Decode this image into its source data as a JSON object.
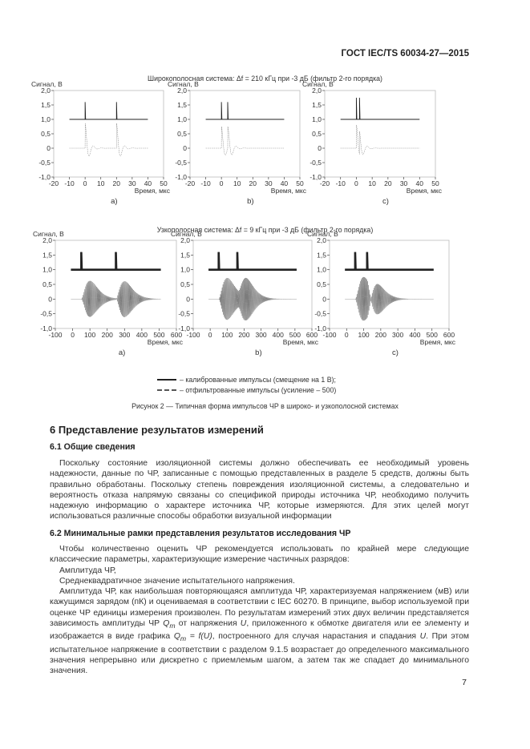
{
  "header": {
    "standard": "ГОСТ IEC/TS 60034-27—2015"
  },
  "figure": {
    "wideband_title": "Широкополосная система: Δf = 210 кГц при -3 дБ (фильтр 2-го порядка)",
    "narrowband_title": "Узкополосная система: Δf = 9 кГц при -3 дБ (фильтр 2-го порядка)",
    "legend": [
      {
        "style": "solid",
        "label": "– калиброванные импульсы (смещение на 1 В);"
      },
      {
        "style": "dashed",
        "label": "– отфильтрованные импульсы (усиление – 500)"
      }
    ],
    "caption": "Рисунок 2 — Типичная форма импульсов ЧР в широко- и узкополосной системах"
  },
  "chart_data": [
    {
      "type": "line",
      "panel": "a)",
      "group": "wideband",
      "ylabel": "Сигнал, В",
      "xlabel": "Время, мкс",
      "xlim": [
        -20,
        50
      ],
      "ylim": [
        -1.0,
        2.0
      ],
      "xticks": [
        "-20",
        "-10",
        "0",
        "10",
        "20",
        "30",
        "40",
        "50"
      ],
      "yticks": [
        "-1,0",
        "-0,5",
        "0",
        "0,5",
        "1,0",
        "1,5",
        "2,0"
      ],
      "x_range": [
        -10,
        40
      ],
      "calibrated": {
        "offset": 1.0,
        "pulse_times": [
          0,
          20
        ],
        "peak": 1.6
      },
      "filtered": {
        "pulse_times": [
          0,
          20
        ],
        "peak": 0.75,
        "trough": -0.6
      }
    },
    {
      "type": "line",
      "panel": "b)",
      "group": "wideband",
      "ylabel": "Сигнал, В",
      "xlabel": "Время, мкс",
      "xlim": [
        -20,
        50
      ],
      "ylim": [
        -1.0,
        2.0
      ],
      "xticks": [
        "-20",
        "-10",
        "0",
        "10",
        "20",
        "30",
        "40",
        "50"
      ],
      "yticks": [
        "-1,0",
        "-0,5",
        "0",
        "0,5",
        "1,0",
        "1,5",
        "2,0"
      ],
      "x_range": [
        -10,
        40
      ],
      "calibrated": {
        "offset": 1.0,
        "pulse_times": [
          0,
          4
        ],
        "peak": 1.6
      },
      "filtered": {
        "pulse_times": [
          0,
          4
        ],
        "peak": 0.65,
        "trough": -0.5
      }
    },
    {
      "type": "line",
      "panel": "c)",
      "group": "wideband",
      "ylabel": "Сигнал, В",
      "xlabel": "Время, мкс",
      "xlim": [
        -20,
        50
      ],
      "ylim": [
        -1.0,
        2.0
      ],
      "xticks": [
        "-20",
        "-10",
        "0",
        "10",
        "20",
        "30",
        "40",
        "50"
      ],
      "yticks": [
        "-1,0",
        "-0,5",
        "0",
        "0,5",
        "1,0",
        "1,5",
        "2,0"
      ],
      "x_range": [
        -10,
        40
      ],
      "calibrated": {
        "offset": 1.0,
        "pulse_times": [
          0,
          2
        ],
        "peak": 1.75
      },
      "filtered": {
        "pulse_times": [
          0,
          2
        ],
        "peak": 0.7,
        "trough": -0.75
      }
    },
    {
      "type": "line",
      "panel": "a)",
      "group": "narrowband",
      "ylabel": "Сигнал, В",
      "xlabel": "Время, мкс",
      "xlim": [
        -100,
        600
      ],
      "ylim": [
        -1.0,
        2.0
      ],
      "xticks": [
        "-100",
        "0",
        "100",
        "200",
        "300",
        "400",
        "500",
        "600"
      ],
      "yticks": [
        "-1,0",
        "-0,5",
        "0",
        "0,5",
        "1,0",
        "1,5",
        "2,0"
      ],
      "x_range": [
        -10,
        510
      ],
      "calibrated": {
        "offset": 1.0,
        "pulse_times": [
          50,
          250
        ],
        "peak": 1.6
      },
      "filtered": {
        "pulse_times": [
          50,
          250
        ],
        "peak": 0.62,
        "trough": -0.62
      }
    },
    {
      "type": "line",
      "panel": "b)",
      "group": "narrowband",
      "ylabel": "Сигнал, В",
      "xlabel": "Время, мкс",
      "xlim": [
        -100,
        600
      ],
      "ylim": [
        -1.0,
        2.0
      ],
      "xticks": [
        "-100",
        "0",
        "100",
        "200",
        "300",
        "400",
        "500",
        "600"
      ],
      "yticks": [
        "-1,0",
        "-0,5",
        "0",
        "0,5",
        "1,0",
        "1,5",
        "2,0"
      ],
      "x_range": [
        -10,
        510
      ],
      "calibrated": {
        "offset": 1.0,
        "pulse_times": [
          50,
          160
        ],
        "peak": 1.6
      },
      "filtered": {
        "pulse_times": [
          50,
          160
        ],
        "peak": 0.72,
        "trough": -0.7
      }
    },
    {
      "type": "line",
      "panel": "c)",
      "group": "narrowband",
      "ylabel": "Сигнал, В",
      "xlabel": "Время, мкс",
      "xlim": [
        -100,
        600
      ],
      "ylim": [
        -1.0,
        2.0
      ],
      "xticks": [
        "-100",
        "0",
        "100",
        "200",
        "300",
        "400",
        "500",
        "600"
      ],
      "yticks": [
        "-1,0",
        "-0,5",
        "0",
        "0,5",
        "1,0",
        "1,5",
        "2,0"
      ],
      "x_range": [
        -10,
        510
      ],
      "calibrated": {
        "offset": 1.0,
        "pulse_times": [
          50,
          120
        ],
        "peak": 1.6
      },
      "filtered": {
        "pulse_times": [
          50,
          120
        ],
        "peak": 0.75,
        "trough": -0.75
      }
    }
  ],
  "section6": {
    "title": "6  Представление результатов измерений",
    "s61_title": "6.1  Общие сведения",
    "s61_text": "Поскольку состояние изоляционной системы должно обеспечивать ее необходимый уровень надежности, данные по ЧР, записанные с помощью представленных в разделе 5 средств, должны быть правильно обработаны. Поскольку степень повреждения изоляционной системы, а следовательно и вероятность отказа напрямую связаны со спецификой природы источника ЧР, необходимо получить надежную информацию о характере источника ЧР, которые измеряются. Для этих целей могут использоваться различные способы обработки визуальной информации",
    "s62_title": "6.2  Минимальные рамки представления результатов исследования ЧР",
    "s62_p1": "Чтобы количественно оценить ЧР рекомендуется использовать по крайней мере следующие классические параметры, характеризующие измерение частичных разрядов:",
    "s62_item1": "Амплитуда ЧР,",
    "s62_item2": "Среднеквадратичное значение испытательного напряжения.",
    "s62_p2_a": "Амплитуда ЧР, как наибольшая повторяющаяся амплитуда ЧР, характеризуемая напряжением (мВ) или кажущимся зарядом (пК) и оцениваемая в соответствии с IEC 60270. В принципе, выбор используемой при оценке ЧР единицы измерения произволен. По результатам измерений этих двух величин представляется зависимость амплитуды ЧР ",
    "s62_p2_b": " от напряжения ",
    "s62_p2_c": ", приложенного к обмотке двигателя или ее элементу и изображается в виде графика ",
    "s62_p2_d": ", построенного для случая нарастания и спадания ",
    "s62_p2_e": ". При этом испытательное напряжение в соответствии с разделом 9.1.5 возрастает до определенного максимального значения непрерывно или дискретно с приемлемым шагом, а затем так же спадает до минимального значения.",
    "sym_Q": "Q",
    "sym_m": "m",
    "sym_U": "U",
    "sym_eq": " = f(U)"
  },
  "page_number": "7"
}
